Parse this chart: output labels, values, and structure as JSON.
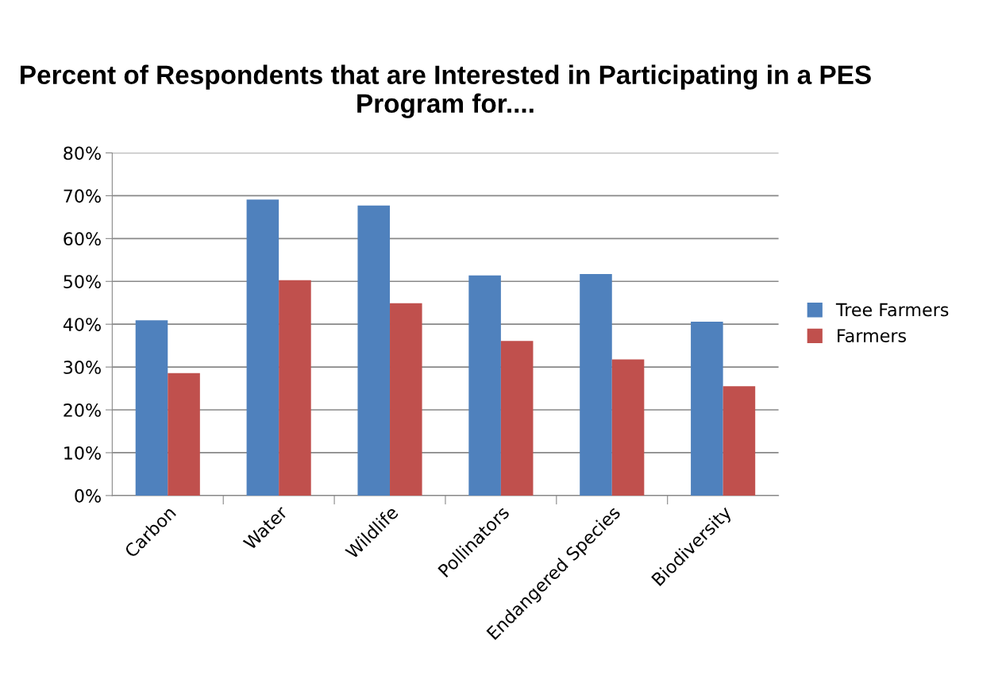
{
  "chart_data": {
    "type": "bar",
    "title": "Percent of Respondents that are Interested in Participating in a PES Program for....",
    "categories": [
      "Carbon",
      "Water",
      "Wildlife",
      "Pollinators",
      "Endangered Species",
      "Biodiversity"
    ],
    "series": [
      {
        "name": "Tree Farmers",
        "color": "#4f81bd",
        "values": [
          40.9,
          69.1,
          67.7,
          51.4,
          51.7,
          40.6
        ]
      },
      {
        "name": "Farmers",
        "color": "#c0504d",
        "values": [
          28.6,
          50.3,
          44.9,
          36.1,
          31.8,
          25.5
        ]
      }
    ],
    "ylim": [
      0,
      80
    ],
    "yticks": [
      {
        "value": 0,
        "label": "0%"
      },
      {
        "value": 10,
        "label": "10%"
      },
      {
        "value": 20,
        "label": "20%"
      },
      {
        "value": 30,
        "label": "30%"
      },
      {
        "value": 40,
        "label": "40%"
      },
      {
        "value": 50,
        "label": "50%"
      },
      {
        "value": 60,
        "label": "60%"
      },
      {
        "value": 70,
        "label": "70%"
      },
      {
        "value": 80,
        "label": "80%"
      }
    ],
    "grid": "y",
    "legend": "right"
  }
}
